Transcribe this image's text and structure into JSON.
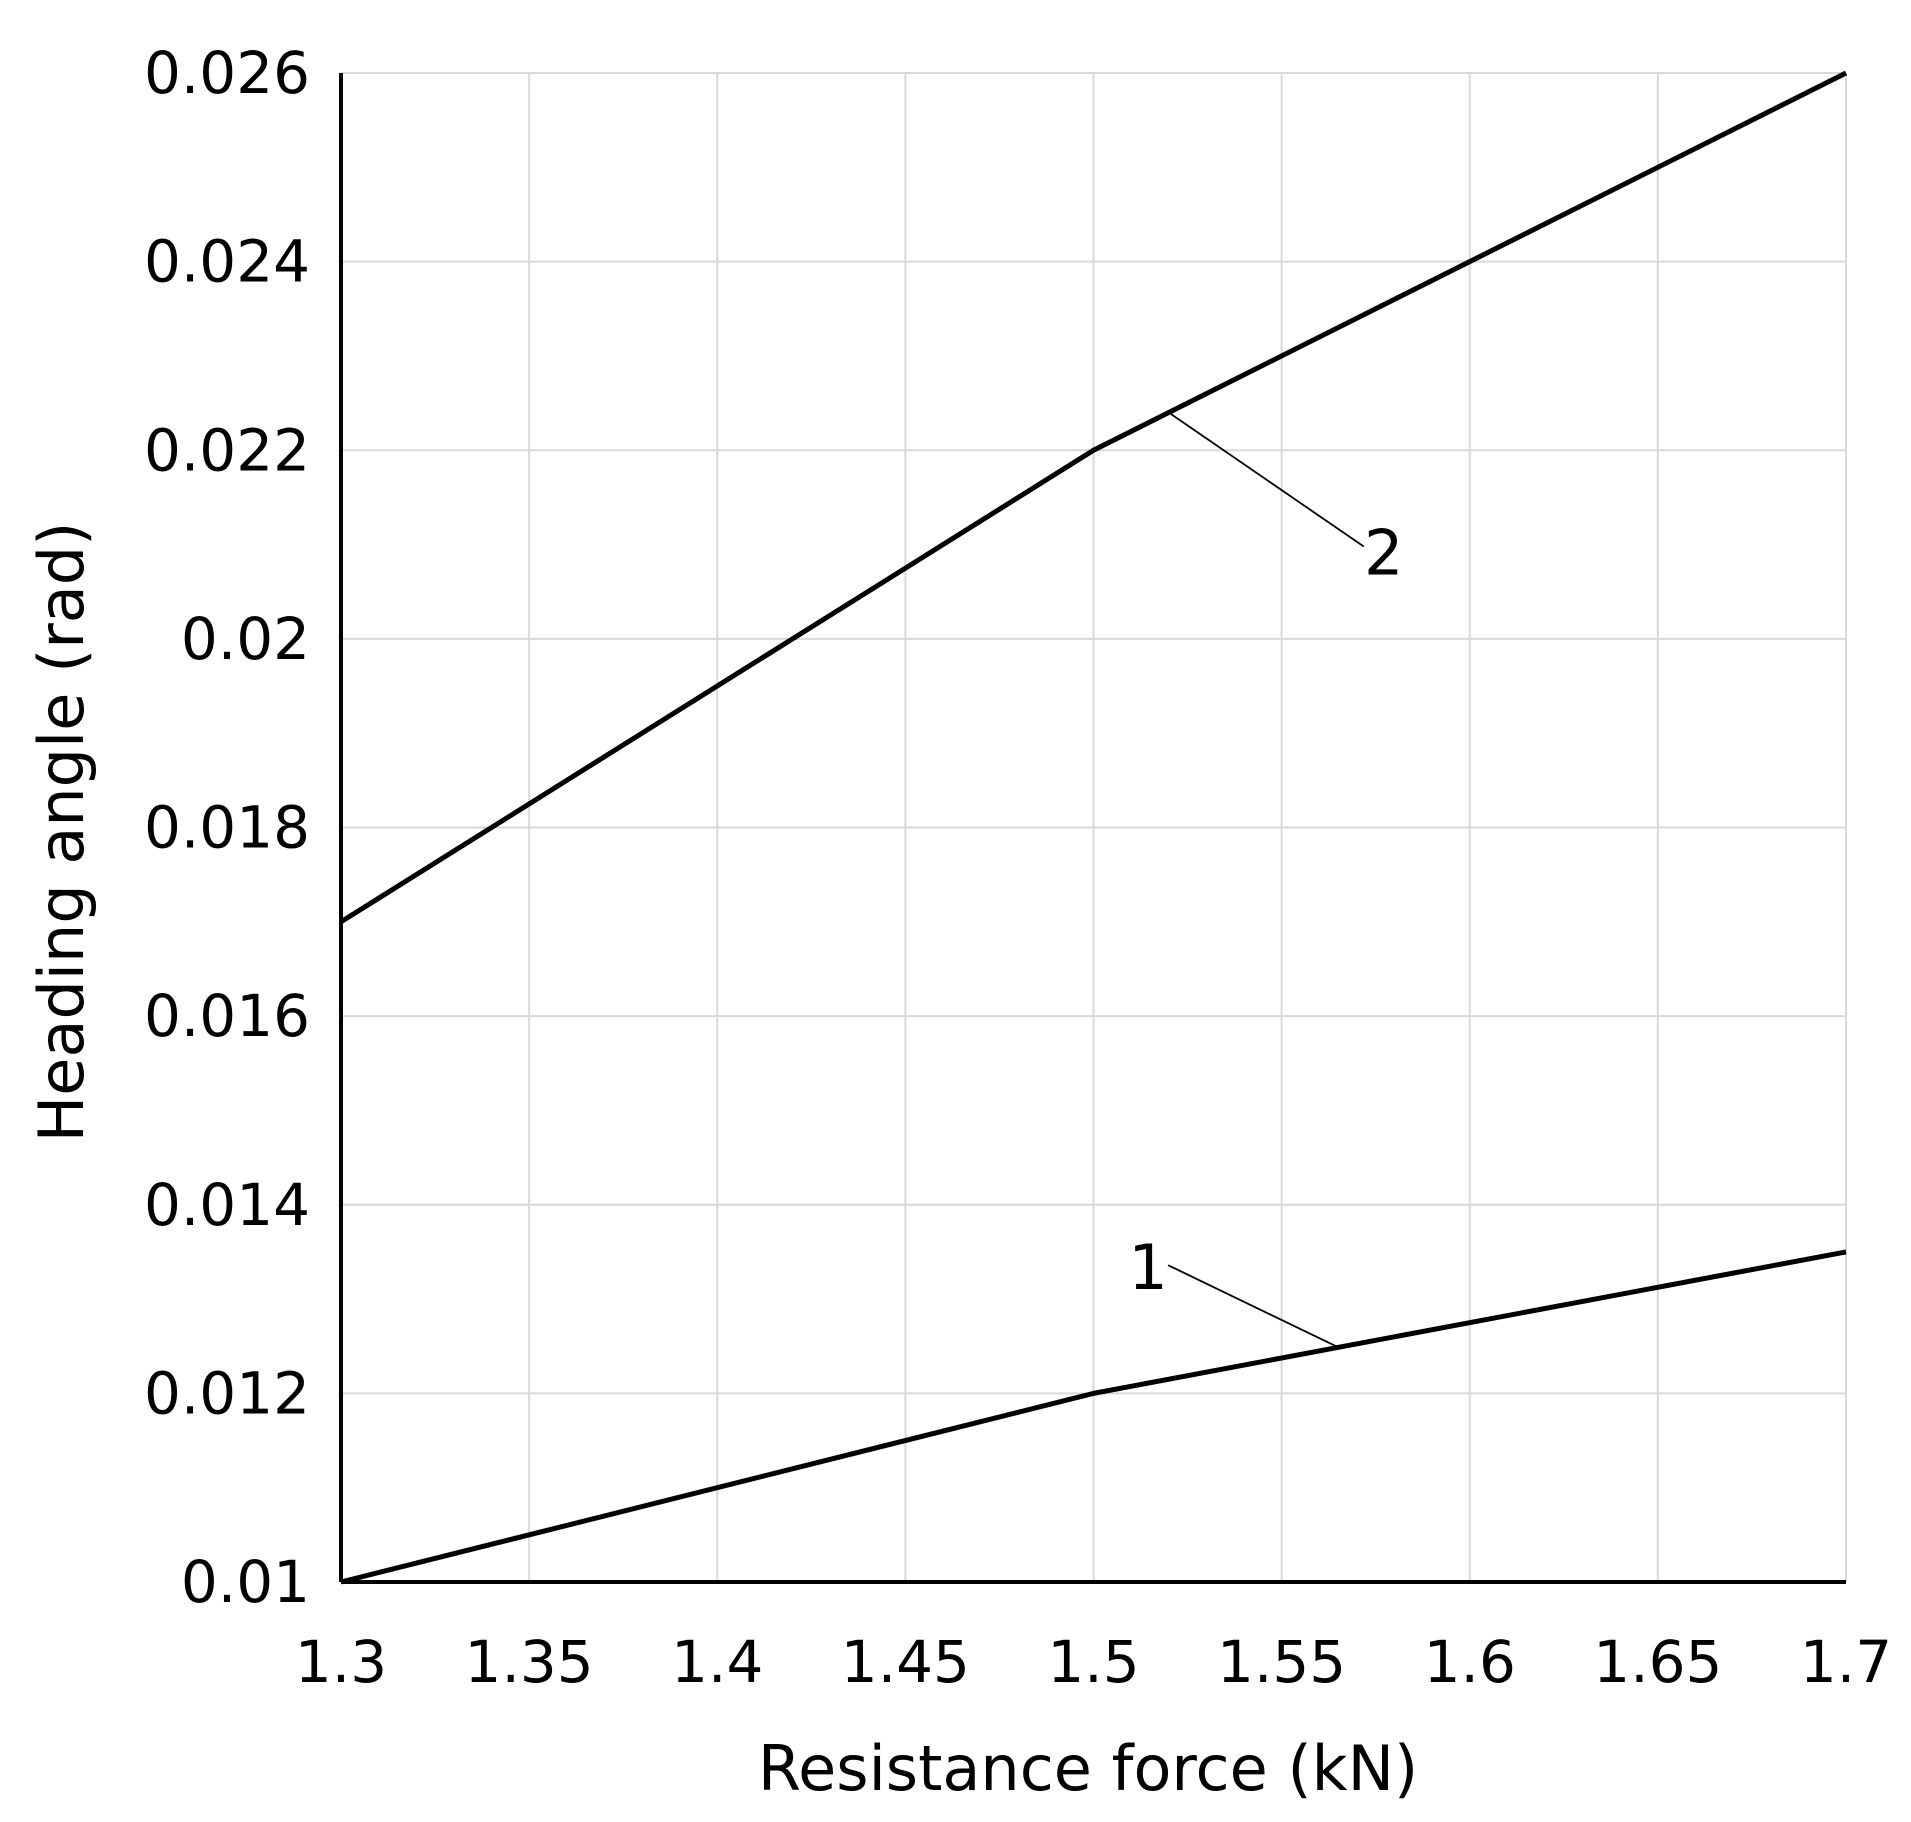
{
  "chart_data": {
    "type": "line",
    "xlabel": "Resistance force (kN)",
    "ylabel": "Heading angle (rad)",
    "xlim": [
      1.3,
      1.7
    ],
    "ylim": [
      0.01,
      0.026
    ],
    "x_ticks": [
      "1.3",
      "1.35",
      "1.4",
      "1.45",
      "1.5",
      "1.55",
      "1.6",
      "1.65",
      "1.7"
    ],
    "y_ticks": [
      "0.01",
      "0.012",
      "0.014",
      "0.016",
      "0.018",
      "0.02",
      "0.022",
      "0.024",
      "0.026"
    ],
    "grid": true,
    "legend": "none",
    "line_color": "#000000",
    "grid_color": "#d9d9d9",
    "series": [
      {
        "name": "1",
        "x": [
          1.3,
          1.5,
          1.7
        ],
        "y": [
          0.01,
          0.012,
          0.0135
        ]
      },
      {
        "name": "2",
        "x": [
          1.3,
          1.5,
          1.7
        ],
        "y": [
          0.017,
          0.022,
          0.026
        ]
      }
    ],
    "annotations": [
      {
        "text": "1",
        "series": "1",
        "points_to_x": 1.565,
        "points_to_y": 0.01249
      },
      {
        "text": "2",
        "series": "2",
        "points_to_x": 1.52,
        "points_to_y": 0.0224
      }
    ]
  }
}
